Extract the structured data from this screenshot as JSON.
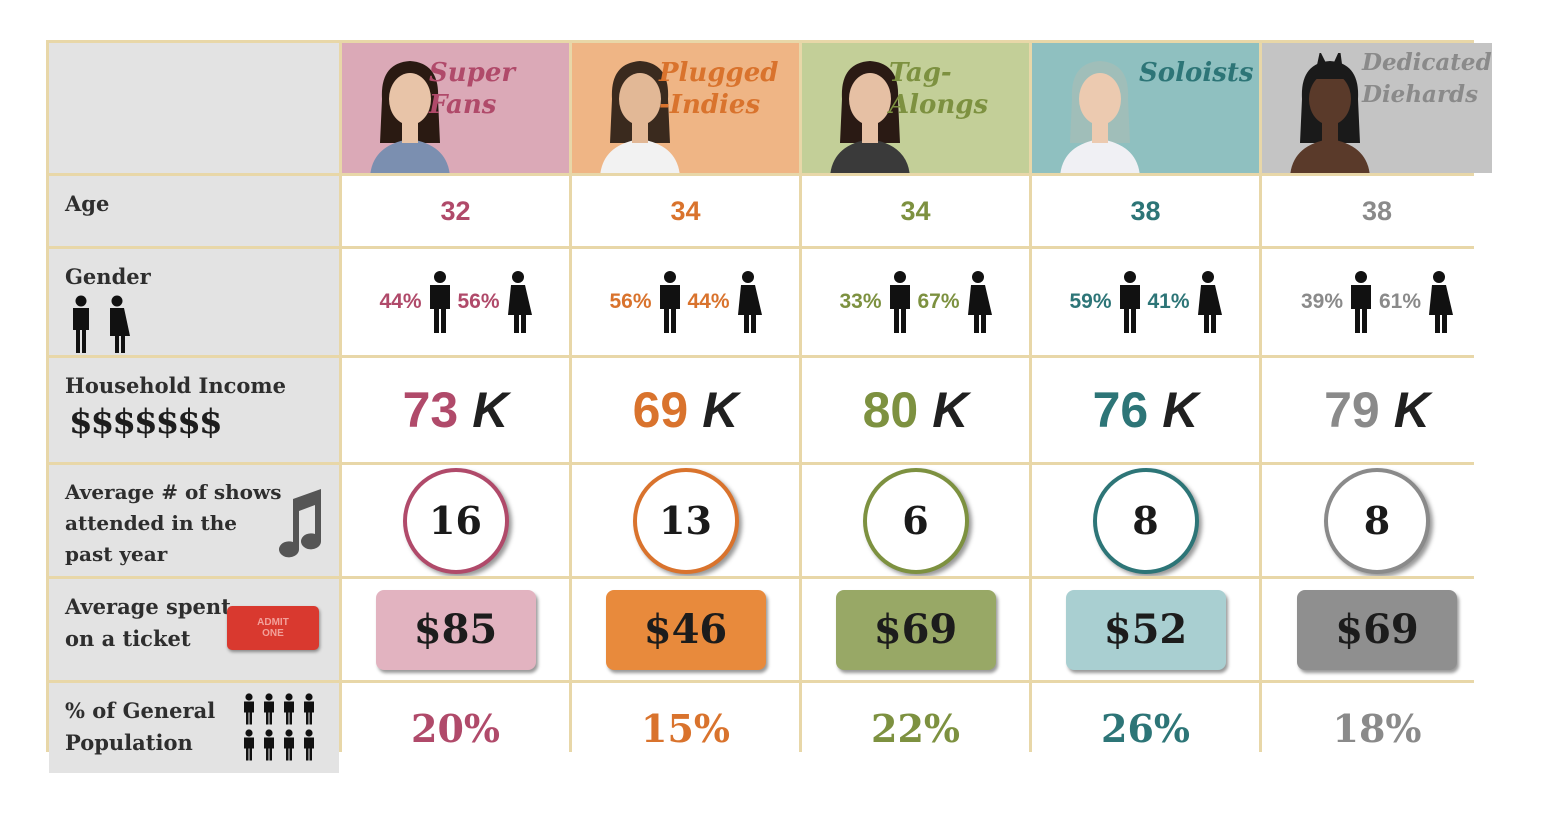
{
  "chart_data": {
    "type": "table",
    "row_labels": {
      "age": "Age",
      "gender": "Gender",
      "income": "Household Income",
      "income_sub": "$$$$$$$",
      "shows": [
        "Average # of shows",
        "attended in the",
        "past year"
      ],
      "ticket": [
        "Average spent",
        "on a ticket"
      ],
      "ticket_stub": [
        "ADMIT",
        "ONE"
      ],
      "pop": [
        "% of General",
        "Population"
      ]
    },
    "segments": [
      {
        "name_lines": [
          "Super",
          "Fans"
        ],
        "color": "#b04a6a",
        "bg": "#dba9b7",
        "ticket_bg": "#e2b3c0",
        "age": "32",
        "male": "44%",
        "female": "56%",
        "income": "73",
        "shows": "16",
        "ticket": "$85",
        "pop": "20%"
      },
      {
        "name_lines": [
          "Plugged",
          "-Indies"
        ],
        "color": "#d9732d",
        "bg": "#efb585",
        "ticket_bg": "#e88a3c",
        "age": "34",
        "male": "56%",
        "female": "44%",
        "income": "69",
        "shows": "13",
        "ticket": "$46",
        "pop": "15%"
      },
      {
        "name_lines": [
          "Tag-",
          "Alongs"
        ],
        "color": "#7d9140",
        "bg": "#c3cf98",
        "ticket_bg": "#98a866",
        "age": "34",
        "male": "33%",
        "female": "67%",
        "income": "80",
        "shows": "6",
        "ticket": "$69",
        "pop": "22%"
      },
      {
        "name_lines": [
          "Soloists"
        ],
        "color": "#2d7577",
        "bg": "#8fc0c0",
        "ticket_bg": "#a9cfd1",
        "age": "38",
        "male": "59%",
        "female": "41%",
        "income": "76",
        "shows": "8",
        "ticket": "$52",
        "pop": "26%"
      },
      {
        "name_lines": [
          "Dedicated",
          "Diehards"
        ],
        "color": "#8a8a8a",
        "bg": "#c4c4c4",
        "ticket_bg": "#8f8f8f",
        "age": "38",
        "male": "39%",
        "female": "61%",
        "income": "79",
        "shows": "8",
        "ticket": "$69",
        "pop": "18%"
      }
    ],
    "income_unit": "K"
  }
}
